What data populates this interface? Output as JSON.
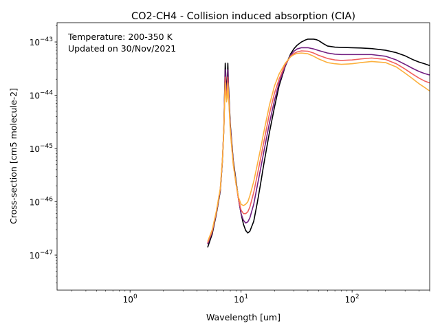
{
  "chart_data": {
    "type": "line",
    "title": "CO2-CH4 - Collision induced absorption (CIA)",
    "xlabel": "Wavelength [um]",
    "ylabel": "Cross-section [cm5 molecule-2]",
    "xscale": "log",
    "yscale": "log",
    "xlim": [
      0.22,
      500
    ],
    "ylim": [
      2.2e-48,
      2.3e-43
    ],
    "grid": false,
    "x_ticks": [
      {
        "value": 1,
        "base": "10",
        "exp": "0"
      },
      {
        "value": 10,
        "base": "10",
        "exp": "1"
      },
      {
        "value": 100,
        "base": "10",
        "exp": "2"
      }
    ],
    "y_ticks": [
      {
        "value": 1e-47,
        "base": "10",
        "exp": "−47"
      },
      {
        "value": 1e-46,
        "base": "10",
        "exp": "−46"
      },
      {
        "value": 1e-45,
        "base": "10",
        "exp": "−45"
      },
      {
        "value": 1e-44,
        "base": "10",
        "exp": "−44"
      },
      {
        "value": 1e-43,
        "base": "10",
        "exp": "−43"
      }
    ],
    "annotation_lines": [
      "Temperature: 200-350 K",
      "Updated on 30/Nov/2021"
    ],
    "series": [
      {
        "color": "#000004",
        "x": [
          5,
          5.5,
          6,
          6.5,
          6.8,
          7.0,
          7.1,
          7.2,
          7.3,
          7.4,
          7.5,
          7.6,
          7.7,
          7.75,
          8.0,
          8.5,
          9,
          9.5,
          10,
          10.5,
          11,
          11.5,
          12,
          13,
          14,
          15,
          16,
          18,
          20,
          22,
          25,
          28,
          30,
          32,
          35,
          38,
          40,
          43,
          45,
          48,
          50,
          55,
          60,
          70,
          80,
          100,
          120,
          150,
          200,
          250,
          300,
          350,
          400,
          450,
          500
        ],
        "y": [
          1.4e-47,
          2.5e-47,
          6e-47,
          1.6e-46,
          6e-46,
          2.5e-45,
          1e-44,
          4e-44,
          2.2e-44,
          1.3e-44,
          1.7e-44,
          4e-44,
          1.5e-44,
          1.2e-44,
          2.8e-45,
          6e-46,
          2.5e-46,
          1.1e-46,
          6e-47,
          3.8e-47,
          2.9e-47,
          2.6e-47,
          2.8e-47,
          4.3e-47,
          9.6e-47,
          2.2e-46,
          5e-46,
          2e-45,
          6e-45,
          1.5e-44,
          3.5e-44,
          6e-44,
          7.5e-44,
          8.7e-44,
          1e-43,
          1.09e-43,
          1.13e-43,
          1.13e-43,
          1.13e-43,
          1.1e-43,
          1.06e-43,
          9.3e-44,
          8.4e-44,
          8e-44,
          7.9e-44,
          7.8e-44,
          7.7e-44,
          7.5e-44,
          7e-44,
          6.3e-44,
          5.5e-44,
          4.7e-44,
          4.2e-44,
          3.9e-44,
          3.6e-44
        ]
      },
      {
        "color": "#721f81",
        "x": [
          5,
          5.5,
          6,
          6.5,
          6.8,
          7.0,
          7.1,
          7.2,
          7.3,
          7.4,
          7.5,
          7.6,
          7.7,
          7.75,
          8.0,
          8.5,
          9,
          9.5,
          10,
          10.5,
          11,
          11.5,
          12,
          13,
          14,
          15,
          16,
          18,
          20,
          22,
          25,
          28,
          30,
          32,
          35,
          40,
          45,
          50,
          60,
          70,
          80,
          100,
          120,
          150,
          200,
          250,
          300,
          350,
          400,
          450,
          500
        ],
        "y": [
          1.6e-47,
          2.7e-47,
          6.3e-47,
          1.7e-46,
          6.2e-46,
          2.5e-45,
          9e-45,
          3e-44,
          1.8e-44,
          1.1e-44,
          1.4e-44,
          3e-44,
          1.3e-44,
          1e-44,
          2.5e-45,
          5.5e-46,
          2.3e-46,
          1.1e-46,
          6e-47,
          4.5e-47,
          4e-47,
          4.2e-47,
          5e-47,
          9e-47,
          2e-46,
          4.2e-46,
          8.5e-46,
          3e-45,
          8e-45,
          1.7e-44,
          3.6e-44,
          5.7e-44,
          6.7e-44,
          7.4e-44,
          7.8e-44,
          7.8e-44,
          7.4e-44,
          6.9e-44,
          6.2e-44,
          5.9e-44,
          5.8e-44,
          5.8e-44,
          5.8e-44,
          5.8e-44,
          5.4e-44,
          4.6e-44,
          3.8e-44,
          3.2e-44,
          2.8e-44,
          2.55e-44,
          2.4e-44
        ]
      },
      {
        "color": "#f1605d",
        "x": [
          5,
          5.5,
          6,
          6.5,
          6.8,
          7.0,
          7.1,
          7.2,
          7.3,
          7.4,
          7.5,
          7.6,
          7.7,
          7.75,
          8.0,
          8.5,
          9,
          9.5,
          10,
          10.5,
          11,
          11.5,
          12,
          13,
          14,
          15,
          16,
          18,
          20,
          22,
          25,
          28,
          30,
          32,
          35,
          40,
          45,
          50,
          60,
          70,
          80,
          100,
          120,
          150,
          200,
          250,
          300,
          350,
          400,
          450,
          500
        ],
        "y": [
          1.7e-47,
          2.8e-47,
          6.5e-47,
          1.75e-46,
          6.3e-46,
          2.4e-45,
          8e-45,
          2.2e-44,
          1.4e-44,
          9e-45,
          1.1e-44,
          2.2e-44,
          1.1e-44,
          9e-45,
          2.3e-45,
          5.2e-46,
          2.2e-46,
          1.1e-46,
          7e-47,
          6e-47,
          6e-47,
          6.5e-47,
          8e-47,
          1.5e-46,
          3.2e-46,
          6.5e-46,
          1.3e-45,
          4.5e-45,
          1.1e-44,
          2e-44,
          3.8e-44,
          5.4e-44,
          6.1e-44,
          6.5e-44,
          6.8e-44,
          6.7e-44,
          6.2e-44,
          5.6e-44,
          4.9e-44,
          4.6e-44,
          4.5e-44,
          4.6e-44,
          4.8e-44,
          5e-44,
          4.7e-44,
          3.9e-44,
          3.1e-44,
          2.5e-44,
          2.1e-44,
          1.85e-44,
          1.7e-44
        ]
      },
      {
        "color": "#fcb03d",
        "x": [
          5,
          5.5,
          6,
          6.5,
          6.8,
          7.0,
          7.1,
          7.2,
          7.3,
          7.4,
          7.5,
          7.6,
          7.7,
          7.75,
          8.0,
          8.5,
          9,
          9.5,
          10,
          10.5,
          11,
          11.5,
          12,
          13,
          14,
          15,
          16,
          18,
          20,
          22,
          25,
          28,
          30,
          32,
          35,
          40,
          45,
          50,
          60,
          70,
          80,
          100,
          120,
          150,
          200,
          250,
          300,
          350,
          400,
          450,
          500
        ],
        "y": [
          1.8e-47,
          3e-47,
          6.8e-47,
          1.8e-46,
          6.4e-46,
          2.3e-45,
          7e-45,
          1.7e-44,
          1.1e-44,
          7.5e-45,
          9e-45,
          1.7e-44,
          9e-45,
          8e-45,
          2.1e-45,
          5e-46,
          2.2e-46,
          1.2e-46,
          9e-47,
          8.5e-47,
          9e-47,
          1e-46,
          1.3e-46,
          2.4e-46,
          5e-46,
          1e-45,
          2e-45,
          6.5e-45,
          1.5e-44,
          2.5e-44,
          4e-44,
          5.3e-44,
          5.8e-44,
          6.1e-44,
          6.2e-44,
          6e-44,
          5.4e-44,
          4.8e-44,
          4.1e-44,
          3.9e-44,
          3.8e-44,
          3.9e-44,
          4.1e-44,
          4.3e-44,
          4.1e-44,
          3.4e-44,
          2.6e-44,
          2.05e-44,
          1.65e-44,
          1.4e-44,
          1.2e-44
        ]
      }
    ]
  }
}
